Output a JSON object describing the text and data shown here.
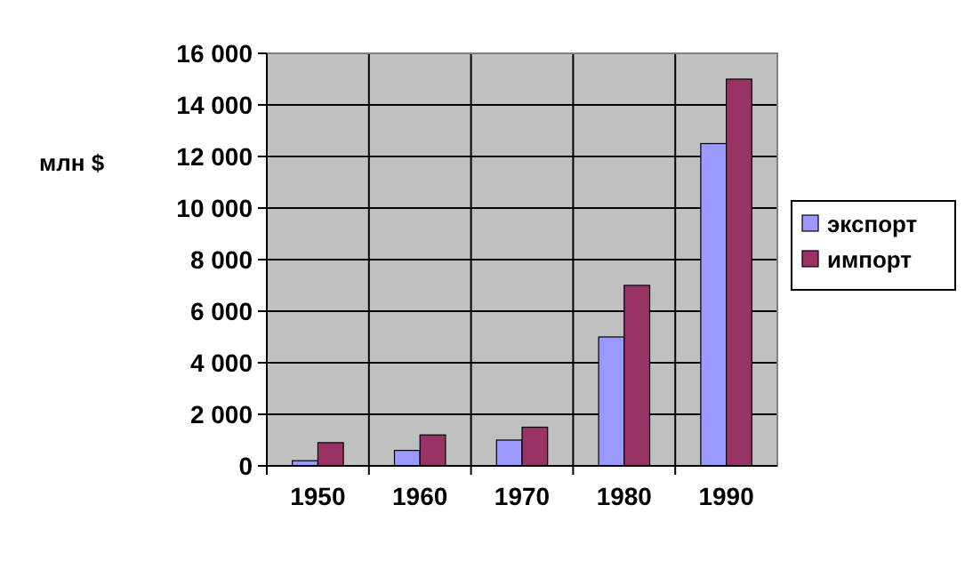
{
  "chart_data": {
    "type": "bar",
    "ylabel": "млн $",
    "categories": [
      "1950",
      "1960",
      "1970",
      "1980",
      "1990"
    ],
    "series": [
      {
        "name": "экспорт",
        "color": "#9999ff",
        "values": [
          200,
          600,
          1000,
          5000,
          12500
        ]
      },
      {
        "name": "импорт",
        "color": "#993366",
        "values": [
          900,
          1200,
          1500,
          7000,
          15000
        ]
      }
    ],
    "ylim": [
      0,
      16000
    ],
    "yticks": [
      0,
      {
        "value": 2000,
        "label": "2 000"
      },
      {
        "value": 4000,
        "label": "4 000"
      },
      {
        "value": 6000,
        "label": "6 000"
      },
      {
        "value": 8000,
        "label": "8 000"
      },
      {
        "value": 10000,
        "label": "10 000"
      },
      {
        "value": 12000,
        "label": "12 000"
      },
      {
        "value": 14000,
        "label": "14 000"
      },
      {
        "value": 16000,
        "label": "16 000"
      }
    ],
    "grid": true,
    "legend": "right"
  }
}
